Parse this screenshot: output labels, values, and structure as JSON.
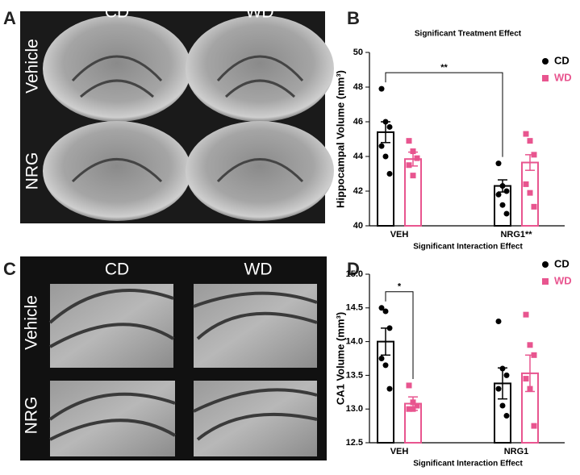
{
  "figure": {
    "panel_labels": [
      "A",
      "B",
      "C",
      "D"
    ],
    "panel_a": {
      "columns": [
        "CD",
        "WD"
      ],
      "rows": [
        "Vehicle",
        "NRG"
      ]
    },
    "panel_c": {
      "columns": [
        "CD",
        "WD"
      ],
      "rows": [
        "Vehicle",
        "NRG"
      ]
    }
  },
  "chart_data": [
    {
      "type": "bar",
      "title": "Significant Treatment Effect",
      "ylabel": "Hippocampal Volume (mm³)",
      "xlabel": "Significant Interaction Effect",
      "categories": [
        "VEH",
        "NRG1**"
      ],
      "ylim": [
        40,
        50
      ],
      "yticks": [
        40,
        42,
        44,
        46,
        48,
        50
      ],
      "annotation": "**",
      "series": [
        {
          "name": "CD",
          "color": "#000000",
          "marker": "circle",
          "values": [
            45.4,
            42.3
          ],
          "errors": [
            0.6,
            0.35
          ],
          "points": [
            [
              47.9,
              46.0,
              45.7,
              44.6,
              44.0,
              43.0
            ],
            [
              43.6,
              42.3,
              42.0,
              41.8,
              41.2,
              40.7
            ]
          ]
        },
        {
          "name": "WD",
          "color": "#e8558f",
          "marker": "square",
          "values": [
            43.85,
            43.65
          ],
          "errors": [
            0.4,
            0.45
          ],
          "points": [
            [
              44.9,
              44.3,
              43.9,
              43.5,
              42.9
            ],
            [
              45.3,
              44.9,
              44.1,
              42.4,
              41.9,
              41.1
            ]
          ]
        }
      ]
    },
    {
      "type": "bar",
      "ylabel": "CA1 Volume (mm³)",
      "xlabel": "Significant Interaction Effect",
      "categories": [
        "VEH",
        "NRG1"
      ],
      "ylim": [
        12.5,
        15.0
      ],
      "yticks": [
        12.5,
        {
          "value": 13,
          "label": "13.0"
        },
        13.5,
        {
          "value": 14,
          "label": "14.0"
        },
        14.5,
        {
          "value": 15,
          "label": "15.0"
        }
      ],
      "annotation": "*",
      "series": [
        {
          "name": "CD",
          "color": "#000000",
          "marker": "circle",
          "values": [
            14.0,
            13.38
          ],
          "errors": [
            0.2,
            0.23
          ],
          "points": [
            [
              14.5,
              14.45,
              14.2,
              13.75,
              13.65,
              13.3
            ],
            [
              14.3,
              13.6,
              13.5,
              13.3,
              13.05,
              12.9
            ]
          ]
        },
        {
          "name": "WD",
          "color": "#e8558f",
          "marker": "square",
          "values": [
            13.08,
            13.53
          ],
          "errors": [
            0.1,
            0.27
          ],
          "points": [
            [
              13.35,
              13.1,
              13.05,
              13.0,
              13.0
            ],
            [
              14.4,
              13.95,
              13.8,
              13.45,
              13.3,
              12.75
            ]
          ]
        }
      ]
    }
  ]
}
